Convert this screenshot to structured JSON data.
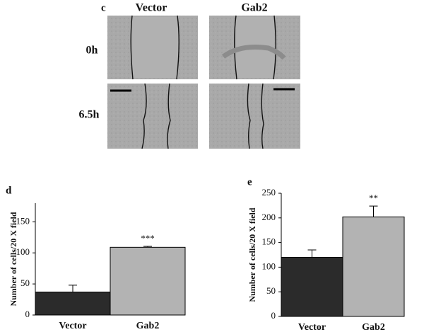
{
  "panel_c": {
    "label": "c",
    "columns": [
      "Vector",
      "Gab2"
    ],
    "rows": [
      "0h",
      "6.5h"
    ]
  },
  "chart_data": [
    {
      "type": "bar",
      "panel_label": "d",
      "ylabel": "Number of cells/20 X field",
      "categories": [
        "Vector",
        "Gab2"
      ],
      "values": [
        37,
        109
      ],
      "errors": [
        11,
        1.5
      ],
      "colors": [
        "#2b2b2b",
        "#b3b3b3"
      ],
      "ylim": [
        0,
        180
      ],
      "yticks": [
        0,
        50,
        100,
        150
      ],
      "annotations": [
        {
          "category": "Gab2",
          "text": "***"
        }
      ]
    },
    {
      "type": "bar",
      "panel_label": "e",
      "ylabel": "Number of cells/20 X field",
      "categories": [
        "Vector",
        "Gab2"
      ],
      "values": [
        120,
        202
      ],
      "errors": [
        15,
        22
      ],
      "colors": [
        "#2b2b2b",
        "#b3b3b3"
      ],
      "ylim": [
        0,
        250
      ],
      "yticks": [
        0,
        50,
        100,
        150,
        200,
        250
      ],
      "annotations": [
        {
          "category": "Gab2",
          "text": "**"
        }
      ]
    }
  ]
}
